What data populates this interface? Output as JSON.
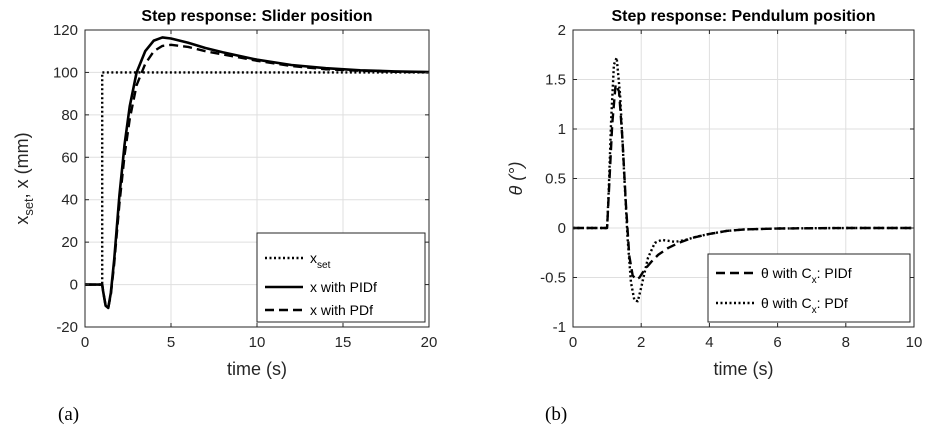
{
  "chart_data": [
    {
      "type": "line",
      "title": "Step response: Slider position",
      "xlabel": "time (s)",
      "ylabel_parts": [
        "x",
        "set",
        ", x (mm)"
      ],
      "xlim": [
        0,
        20
      ],
      "ylim": [
        -20,
        120
      ],
      "xticks": [
        0,
        5,
        10,
        15,
        20
      ],
      "yticks": [
        -20,
        0,
        20,
        40,
        60,
        80,
        100,
        120
      ],
      "grid": true,
      "legend_position": "bottom-right",
      "panel_label": "(a)",
      "series": [
        {
          "name_parts": [
            "x",
            "set",
            ""
          ],
          "style": "dotted",
          "x": [
            0,
            1,
            1,
            20
          ],
          "y": [
            0,
            0,
            100,
            100
          ]
        },
        {
          "name_parts": [
            "x with PIDf",
            "",
            ""
          ],
          "style": "solid",
          "x": [
            0,
            1.0,
            1.05,
            1.2,
            1.35,
            1.5,
            1.7,
            2.0,
            2.3,
            2.6,
            3.0,
            3.5,
            4.0,
            4.5,
            5.0,
            6.0,
            7.0,
            8.0,
            10.0,
            12.0,
            14.0,
            16.0,
            18.0,
            20.0
          ],
          "y": [
            0,
            0,
            -3,
            -10,
            -11,
            -4,
            12,
            42,
            66,
            84,
            100,
            110,
            115,
            116.5,
            116,
            114,
            111.5,
            109.5,
            106,
            103.5,
            102,
            101,
            100.5,
            100.2
          ]
        },
        {
          "name_parts": [
            "x with PDf",
            "",
            ""
          ],
          "style": "dashed",
          "x": [
            0,
            1.0,
            1.05,
            1.2,
            1.35,
            1.5,
            1.7,
            2.0,
            2.3,
            2.6,
            3.0,
            3.5,
            4.0,
            4.5,
            5.0,
            6.0,
            7.0,
            8.0,
            10.0,
            12.0,
            14.0,
            16.0,
            18.0,
            20.0
          ],
          "y": [
            0,
            0,
            -3,
            -10,
            -11,
            -5,
            10,
            38,
            61,
            78,
            94,
            104,
            110,
            112.5,
            113,
            112,
            110,
            108.5,
            105.5,
            103,
            101.5,
            100.8,
            100.3,
            100.1
          ]
        }
      ]
    },
    {
      "type": "line",
      "title": "Step response: Pendulum position",
      "xlabel": "time (s)",
      "ylabel": "θ (°)",
      "xlim": [
        0,
        10
      ],
      "ylim": [
        -1,
        2
      ],
      "xticks": [
        0,
        2,
        4,
        6,
        8,
        10
      ],
      "yticks": [
        -1,
        -0.5,
        0,
        0.5,
        1,
        1.5,
        2
      ],
      "grid": true,
      "legend_position": "bottom-right",
      "panel_label": "(b)",
      "series": [
        {
          "name_parts": [
            "θ with C",
            "x",
            ": PIDf"
          ],
          "style": "dashed",
          "x": [
            0,
            1.0,
            1.05,
            1.15,
            1.25,
            1.35,
            1.45,
            1.55,
            1.65,
            1.75,
            1.85,
            1.95,
            2.1,
            2.3,
            2.5,
            2.8,
            3.1,
            3.5,
            4.0,
            4.5,
            5.0,
            6.0,
            8.0,
            10.0
          ],
          "y": [
            0,
            0,
            0.35,
            1.05,
            1.45,
            1.38,
            0.9,
            0.25,
            -0.28,
            -0.48,
            -0.52,
            -0.5,
            -0.42,
            -0.34,
            -0.27,
            -0.2,
            -0.15,
            -0.1,
            -0.06,
            -0.03,
            -0.015,
            -0.005,
            0,
            0
          ]
        },
        {
          "name_parts": [
            "θ with C",
            "x",
            ": PDf"
          ],
          "style": "dotted",
          "x": [
            0,
            1.0,
            1.05,
            1.12,
            1.2,
            1.28,
            1.38,
            1.5,
            1.6,
            1.7,
            1.8,
            1.9,
            2.0,
            2.2,
            2.4,
            2.6,
            2.8,
            3.0,
            3.3,
            3.6,
            4.0,
            4.5,
            5.0,
            6.0,
            8.0,
            10.0
          ],
          "y": [
            0,
            0,
            0.4,
            1.1,
            1.65,
            1.72,
            1.35,
            0.55,
            -0.1,
            -0.55,
            -0.73,
            -0.74,
            -0.6,
            -0.3,
            -0.15,
            -0.12,
            -0.13,
            -0.14,
            -0.12,
            -0.09,
            -0.06,
            -0.03,
            -0.015,
            -0.005,
            0,
            0
          ]
        }
      ]
    }
  ]
}
